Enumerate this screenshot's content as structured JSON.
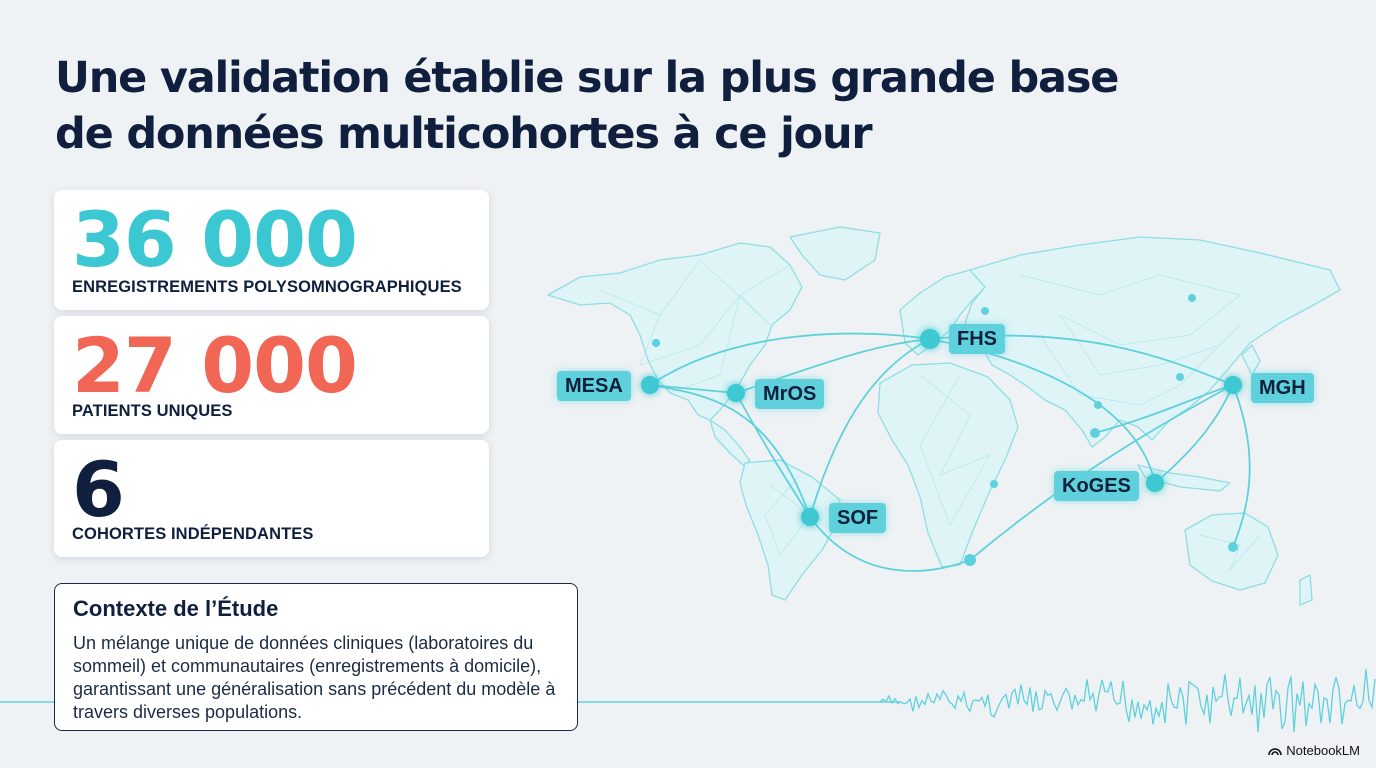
{
  "title": {
    "line1": "Une validation établie sur la plus grande base",
    "line2": "de données multicohortes à ce jour"
  },
  "stats": [
    {
      "value": "36 000",
      "label": "ENREGISTREMENTS POLYSOMNOGRAPHIQUES",
      "color": "#3cc8d2"
    },
    {
      "value": "27 000",
      "label": "PATIENTS UNIQUES",
      "color": "#f26655"
    },
    {
      "value": "6",
      "label": "COHORTES INDÉPENDANTES",
      "color": "#0f1f3d"
    }
  ],
  "context": {
    "title": "Contexte de l’Étude",
    "body": "Un mélange unique de données cliniques (laboratoires du sommeil) et communautaires (enregistrements à domicile), garantissant une généralisation sans précédent du modèle à travers diverses populations."
  },
  "cohorts": [
    "MESA",
    "MrOS",
    "FHS",
    "SOF",
    "KoGES",
    "MGH"
  ],
  "colors": {
    "accent": "#5fd1dc",
    "dark": "#0f1f3d",
    "coral": "#f26655"
  },
  "brand": "NotebookLM"
}
